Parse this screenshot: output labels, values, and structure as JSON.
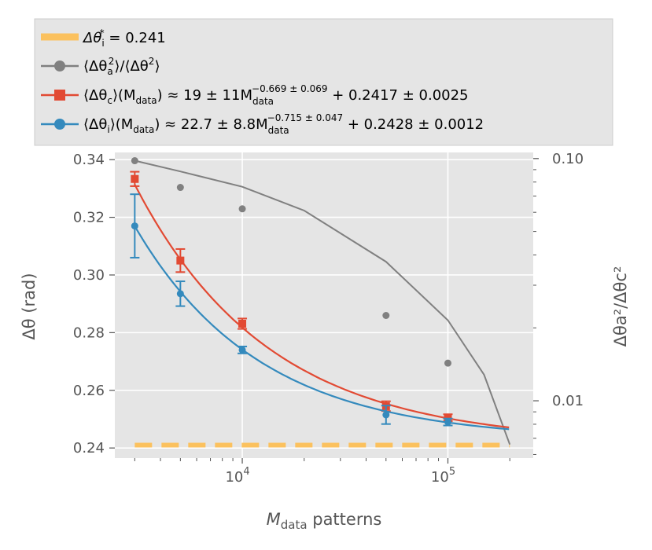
{
  "chart_data": {
    "type": "line",
    "xscale": "log",
    "xlim": [
      2400,
      260000
    ],
    "ylim": [
      0.2365,
      0.3425
    ],
    "y2scale": "log",
    "y2lim": [
      0.0058,
      0.106
    ],
    "xlabel_main": "M",
    "xlabel_sub": "data",
    "xlabel_rest": " patterns",
    "ylabel": "Δθ (rad)",
    "y2label": "Δθa²/Δθc²",
    "yticks": [
      {
        "value": 0.24,
        "label": "0.24"
      },
      {
        "value": 0.26,
        "label": "0.26"
      },
      {
        "value": 0.28,
        "label": "0.28"
      },
      {
        "value": 0.3,
        "label": "0.30"
      },
      {
        "value": 0.32,
        "label": "0.32"
      },
      {
        "value": 0.34,
        "label": "0.34"
      }
    ],
    "xticks": [
      {
        "value": 10000,
        "base": "10",
        "exp": "4"
      },
      {
        "value": 100000,
        "base": "10",
        "exp": "5"
      }
    ],
    "y2ticks": [
      {
        "value": 0.1,
        "label": "0.10"
      },
      {
        "value": 0.01,
        "label": "0.01"
      }
    ],
    "series": [
      {
        "name": "Δθ_i* = 0.241",
        "kind": "hline",
        "color": "#FBC15E",
        "y": 0.241,
        "x_range": [
          3000,
          200000
        ]
      },
      {
        "name": "⟨Δθa²⟩/⟨Δθ²⟩",
        "kind": "points_right_axis",
        "color": "#808080",
        "x": [
          3000,
          5000,
          10000,
          50000,
          100000
        ],
        "y": [
          0.098,
          0.076,
          0.062,
          0.0225,
          0.0143
        ],
        "fit": [
          [
            3000,
            0.098
          ],
          [
            5000,
            0.0885
          ],
          [
            10000,
            0.0765
          ],
          [
            20000,
            0.061
          ],
          [
            50000,
            0.0375
          ],
          [
            100000,
            0.0215
          ],
          [
            150000,
            0.0128
          ],
          [
            200000,
            0.0066
          ]
        ]
      },
      {
        "name": "⟨Δθc⟩(Mdata) fit",
        "kind": "points_errorbars",
        "color": "#E24A33",
        "x": [
          3000,
          5000,
          10000,
          50000,
          100000
        ],
        "y": [
          0.3333,
          0.305,
          0.2831,
          0.2545,
          0.2505
        ],
        "err": [
          0.0025,
          0.004,
          0.0018,
          0.0017,
          0.0012
        ],
        "fit_params": {
          "a": 19,
          "b": -0.669,
          "c": 0.2417
        }
      },
      {
        "name": "⟨Δθi⟩(Mdata) fit",
        "kind": "points_errorbars",
        "color": "#348ABD",
        "x": [
          3000,
          5000,
          10000,
          50000,
          100000
        ],
        "y": [
          0.317,
          0.2935,
          0.274,
          0.2515,
          0.249
        ],
        "err": [
          0.011,
          0.0043,
          0.0012,
          0.0032,
          0.0012
        ],
        "fit_params": {
          "a": 22.7,
          "b": -0.715,
          "c": 0.2428
        }
      }
    ],
    "legend": [
      {
        "lead": "Δθ",
        "sub": "i",
        "sup": "*",
        "rest": " = 0.241"
      },
      {
        "text": "⟨Δθ",
        "sub": "a",
        "sup": "2",
        "rest": "⟩/⟨Δθ",
        "sup2": "2",
        "rest2": "⟩"
      },
      {
        "pre": "⟨Δθ",
        "sub1": "c",
        "mid": "⟩(M",
        "sub2": "data",
        "mid2": ") ≈ 19 ± 11M",
        "sub3": "data",
        "sup3": "−0.669 ± 0.069",
        "post": " + 0.2417 ± 0.0025"
      },
      {
        "pre": "⟨Δθ",
        "sub1": "i",
        "mid": "⟩(M",
        "sub2": "data",
        "mid2": ") ≈ 22.7 ± 8.8M",
        "sub3": "data",
        "sup3": "−0.715 ± 0.047",
        "post": " + 0.2428 ± 0.0012"
      }
    ]
  }
}
